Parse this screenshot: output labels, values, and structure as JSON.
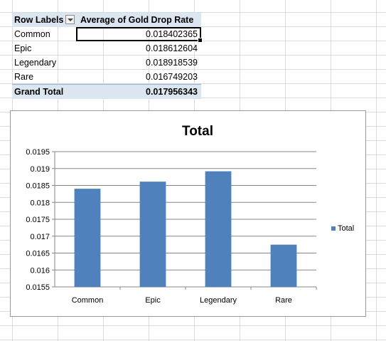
{
  "pivot": {
    "header": {
      "row_labels": "Row Labels",
      "value_header": "Average of Gold Drop Rate"
    },
    "rows": [
      {
        "label": "Common",
        "value": "0.018402365"
      },
      {
        "label": "Epic",
        "value": "0.018612604"
      },
      {
        "label": "Legendary",
        "value": "0.018918539"
      },
      {
        "label": "Rare",
        "value": "0.016749203"
      }
    ],
    "total": {
      "label": "Grand Total",
      "value": "0.017956343"
    },
    "colors": {
      "header_fill": "#dce6f1",
      "total_border": "#95b3d7"
    }
  },
  "chart_data": {
    "type": "bar",
    "title": "Total",
    "categories": [
      "Common",
      "Epic",
      "Legendary",
      "Rare"
    ],
    "series": [
      {
        "name": "Total",
        "values": [
          0.018402365,
          0.018612604,
          0.018918539,
          0.016749203
        ],
        "color": "#4f81bd"
      }
    ],
    "ylim": [
      0.0155,
      0.0195
    ],
    "ytick_labels": [
      "0.0195",
      "0.019",
      "0.0185",
      "0.018",
      "0.0175",
      "0.017",
      "0.0165",
      "0.016",
      "0.0155"
    ],
    "grid": true,
    "legend": "right",
    "xlabel": "",
    "ylabel": ""
  }
}
